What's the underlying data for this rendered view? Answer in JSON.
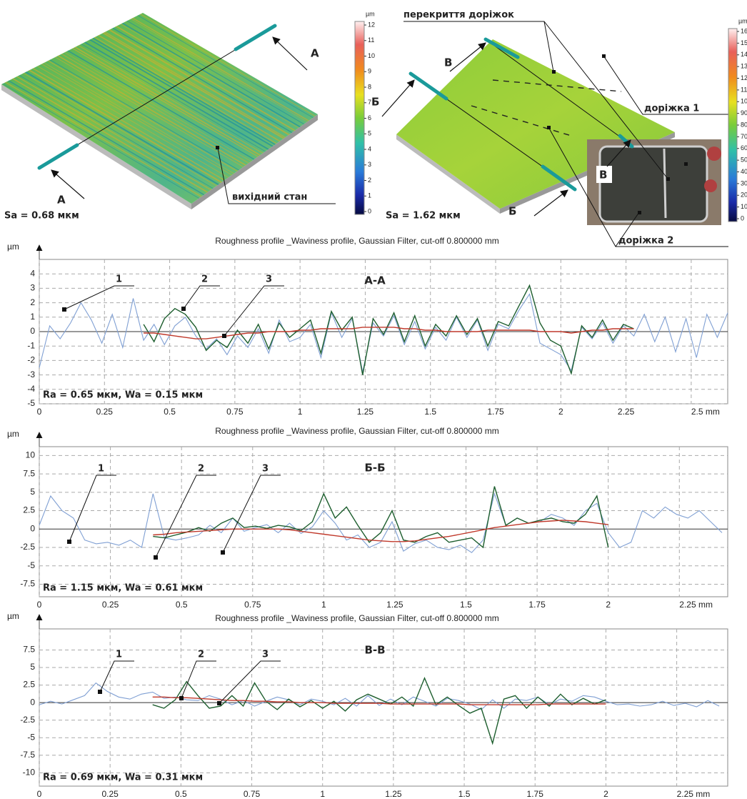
{
  "top": {
    "left_colorbar": {
      "unit": "µm",
      "ticks": [
        12,
        11,
        10,
        9,
        8,
        7,
        6,
        5,
        4,
        3,
        2,
        1,
        0
      ]
    },
    "right_colorbar": {
      "unit": "µm",
      "ticks": [
        16,
        15,
        14,
        13,
        12,
        11,
        10,
        90,
        80,
        70,
        60,
        50,
        40,
        30,
        20,
        10,
        0
      ]
    },
    "section_marks": [
      "А",
      "А",
      "Б",
      "В",
      "Б",
      "В"
    ],
    "labels": [
      "вихідний стан",
      "перекриття доріжок",
      "доріжка 1",
      "доріжка 2"
    ],
    "sa": [
      "Sa = 0.68 мкм",
      "Sa = 1.62 мкм"
    ]
  },
  "chart_data": [
    {
      "type": "line",
      "title": "Roughness profile _Waviness profile, Gaussian Filter, cut-off 0.800000 mm",
      "y_label": "µm",
      "section": "А-А",
      "stats": "Ra = 0.65 мкм, Wa = 0.15 мкм",
      "annotations": [
        "1",
        "2",
        "3"
      ],
      "xlim": [
        0,
        2.64
      ],
      "ylim": [
        -5,
        5
      ],
      "xticks": [
        0,
        0.25,
        0.5,
        0.75,
        1,
        1.25,
        1.5,
        1.75,
        2,
        2.25,
        {
          "value": 2.5,
          "label": "2.5 mm"
        }
      ],
      "yticks": [
        -5,
        -4,
        -3,
        -2,
        -1,
        0,
        1,
        2,
        3,
        4
      ],
      "grid": true,
      "x": [
        0,
        0.04,
        0.08,
        0.12,
        0.16,
        0.2,
        0.24,
        0.28,
        0.32,
        0.36,
        0.4,
        0.44,
        0.48,
        0.52,
        0.56,
        0.6,
        0.64,
        0.68,
        0.72,
        0.76,
        0.8,
        0.84,
        0.88,
        0.92,
        0.96,
        1,
        1.04,
        1.08,
        1.12,
        1.16,
        1.2,
        1.24,
        1.28,
        1.32,
        1.36,
        1.4,
        1.44,
        1.48,
        1.52,
        1.56,
        1.6,
        1.64,
        1.68,
        1.72,
        1.76,
        1.8,
        1.84,
        1.88,
        1.92,
        1.96,
        2,
        2.04,
        2.08,
        2.12,
        2.16,
        2.2,
        2.24,
        2.28,
        2.32,
        2.36,
        2.4,
        2.44,
        2.48,
        2.52,
        2.56,
        2.6,
        2.64
      ],
      "series": [
        {
          "color": "#7f9fd3",
          "values": [
            -2.5,
            0.4,
            -0.5,
            0.6,
            2.0,
            0.8,
            -0.8,
            1.2,
            -1.1,
            2.3,
            -0.6,
            0.5,
            -0.9,
            0.4,
            1.0,
            -0.3,
            -1.2,
            -0.5,
            -1.6,
            -0.3,
            -1.1,
            0.2,
            -1.5,
            0.8,
            -0.7,
            -0.4,
            0.5,
            -1.8,
            1.3,
            -0.4,
            0.9,
            -2.8,
            0.6,
            -0.3,
            1.1,
            -0.9,
            0.7,
            -1.2,
            0.3,
            -0.6,
            1.0,
            -0.4,
            0.8,
            -1.3,
            0.5,
            0.2,
            1.5,
            2.6,
            -0.8,
            -1.2,
            -1.6,
            -2.7,
            0.3,
            -0.5,
            0.6,
            -0.8,
            0.4,
            -0.3,
            1.2,
            -0.7,
            1.0,
            -1.4,
            0.9,
            -1.8,
            1.2,
            -0.4,
            1.3
          ]
        },
        {
          "color": "#1d5e2e",
          "values": [
            null,
            null,
            null,
            null,
            null,
            null,
            null,
            null,
            null,
            null,
            0.5,
            -0.7,
            0.9,
            1.6,
            1.2,
            0.3,
            -1.3,
            -0.6,
            -1.1,
            0.1,
            -0.8,
            0.5,
            -1.2,
            0.6,
            -0.4,
            0.2,
            0.8,
            -1.5,
            1.4,
            0.1,
            1.0,
            -3.0,
            0.9,
            -0.2,
            1.3,
            -0.7,
            1.1,
            -1.0,
            0.5,
            -0.3,
            1.1,
            -0.2,
            0.9,
            -1.0,
            0.7,
            0.4,
            1.8,
            3.2,
            0.6,
            -0.6,
            -1.0,
            -2.9,
            0.4,
            -0.4,
            0.8,
            -0.6,
            0.5,
            0.2,
            null,
            null,
            null,
            null,
            null,
            null,
            null,
            null,
            null
          ]
        },
        {
          "color": "#c0392b",
          "values": [
            null,
            null,
            null,
            null,
            null,
            null,
            null,
            null,
            null,
            null,
            -0.1,
            -0.1,
            -0.2,
            -0.3,
            -0.4,
            -0.5,
            -0.5,
            -0.4,
            -0.3,
            -0.2,
            -0.1,
            -0.1,
            0,
            0,
            0,
            0.1,
            0.1,
            0.2,
            0.2,
            0.2,
            0.2,
            0.3,
            0.3,
            0.3,
            0.3,
            0.2,
            0.2,
            0.1,
            0.1,
            0,
            0,
            0,
            0,
            0.1,
            0.1,
            0.1,
            0.1,
            0.1,
            0,
            0,
            0,
            -0.1,
            0,
            0.1,
            0.1,
            0.2,
            0.2,
            0.2,
            null,
            null,
            null,
            null,
            null,
            null,
            null,
            null,
            null
          ]
        }
      ]
    },
    {
      "type": "line",
      "title": "Roughness profile _Waviness profile, Gaussian Filter, cut-off 0.800000 mm",
      "y_label": "µm",
      "section": "Б-Б",
      "stats": "Ra = 1.15 мкм, Wa = 0.61 мкм",
      "annotations": [
        "1",
        "2",
        "3"
      ],
      "xlim": [
        0,
        2.42
      ],
      "ylim": [
        -9.2,
        11.2
      ],
      "xticks": [
        0,
        0.25,
        0.5,
        0.75,
        1,
        1.25,
        1.5,
        1.75,
        2,
        {
          "value": 2.25,
          "label": "2.25 mm"
        }
      ],
      "yticks": [
        -7.5,
        -5,
        -2.5,
        0,
        2.5,
        5,
        7.5,
        10
      ],
      "grid": true,
      "x": [
        0,
        0.04,
        0.08,
        0.12,
        0.16,
        0.2,
        0.24,
        0.28,
        0.32,
        0.36,
        0.4,
        0.44,
        0.48,
        0.52,
        0.56,
        0.6,
        0.64,
        0.68,
        0.72,
        0.76,
        0.8,
        0.84,
        0.88,
        0.92,
        0.96,
        1,
        1.04,
        1.08,
        1.12,
        1.16,
        1.2,
        1.24,
        1.28,
        1.32,
        1.36,
        1.4,
        1.44,
        1.48,
        1.52,
        1.56,
        1.6,
        1.64,
        1.68,
        1.72,
        1.76,
        1.8,
        1.84,
        1.88,
        1.92,
        1.96,
        2,
        2.04,
        2.08,
        2.12,
        2.16,
        2.2,
        2.24,
        2.28,
        2.32,
        2.36,
        2.4
      ],
      "series": [
        {
          "color": "#7f9fd3",
          "values": [
            0.5,
            4.5,
            2.5,
            1.5,
            -1.5,
            -2.0,
            -1.8,
            -2.2,
            -1.5,
            -2.5,
            4.8,
            -1.2,
            -1.5,
            -1.2,
            -0.8,
            0.5,
            -0.5,
            1.5,
            -0.3,
            0.2,
            0.6,
            -0.5,
            0.8,
            -0.6,
            0.3,
            2.5,
            0.8,
            -1.5,
            -0.8,
            -2.5,
            -1.8,
            1.0,
            -3.0,
            -2.0,
            -1.5,
            -2.5,
            -2.8,
            -2.2,
            -3.2,
            -1.5,
            4.8,
            0.5,
            1.5,
            0.8,
            1.0,
            2.0,
            1.5,
            0.5,
            2.5,
            3.5,
            -0.5,
            -2.5,
            -1.8,
            2.5,
            1.5,
            3.0,
            2.0,
            1.5,
            2.5,
            1.0,
            -0.5
          ]
        },
        {
          "color": "#1d5e2e",
          "values": [
            null,
            null,
            null,
            null,
            null,
            null,
            null,
            null,
            null,
            null,
            -1.0,
            -1.2,
            -0.8,
            -0.4,
            0.2,
            -0.3,
            0.8,
            1.5,
            0.2,
            0.4,
            0.1,
            0.5,
            0.3,
            -0.2,
            1.0,
            4.8,
            1.5,
            3.0,
            0.5,
            -1.8,
            -0.5,
            2.5,
            -1.5,
            -1.8,
            -1.0,
            -0.5,
            -1.8,
            -1.5,
            -1.2,
            -2.5,
            5.8,
            0.5,
            1.5,
            0.8,
            1.2,
            1.5,
            1.0,
            0.8,
            2.0,
            4.5,
            -2.5,
            null,
            null,
            null,
            null,
            null,
            null,
            null,
            null,
            null,
            null
          ]
        },
        {
          "color": "#c0392b",
          "values": [
            null,
            null,
            null,
            null,
            null,
            null,
            null,
            null,
            null,
            null,
            -0.8,
            -0.7,
            -0.5,
            -0.4,
            -0.3,
            -0.2,
            -0.1,
            0,
            0,
            0,
            0,
            0,
            -0.1,
            -0.3,
            -0.5,
            -0.7,
            -0.9,
            -1.1,
            -1.3,
            -1.5,
            -1.6,
            -1.7,
            -1.7,
            -1.6,
            -1.4,
            -1.2,
            -1.0,
            -0.7,
            -0.4,
            -0.1,
            0.2,
            0.4,
            0.6,
            0.8,
            1.0,
            1.1,
            1.2,
            1.1,
            1.0,
            0.8,
            0.6,
            null,
            null,
            null,
            null,
            null,
            null,
            null,
            null,
            null,
            null
          ]
        }
      ]
    },
    {
      "type": "line",
      "title": "Roughness profile _Waviness profile, Gaussian Filter, cut-off 0.800000 mm",
      "y_label": "µm",
      "section": "В-В",
      "stats": "Ra = 0.69 мкм, Wa = 0.31 мкм",
      "annotations": [
        "1",
        "2",
        "3"
      ],
      "xlim": [
        0,
        2.43
      ],
      "ylim": [
        -11.9,
        10.5
      ],
      "xticks": [
        0,
        0.25,
        0.5,
        0.75,
        1,
        1.25,
        1.5,
        1.75,
        2,
        {
          "value": 2.25,
          "label": "2.25 mm"
        }
      ],
      "yticks": [
        -10,
        -7.5,
        -5,
        -2.5,
        0,
        2.5,
        5,
        7.5
      ],
      "grid": true,
      "x": [
        0,
        0.04,
        0.08,
        0.12,
        0.16,
        0.2,
        0.24,
        0.28,
        0.32,
        0.36,
        0.4,
        0.44,
        0.48,
        0.52,
        0.56,
        0.6,
        0.64,
        0.68,
        0.72,
        0.76,
        0.8,
        0.84,
        0.88,
        0.92,
        0.96,
        1,
        1.04,
        1.08,
        1.12,
        1.16,
        1.2,
        1.24,
        1.28,
        1.32,
        1.36,
        1.4,
        1.44,
        1.48,
        1.52,
        1.56,
        1.6,
        1.64,
        1.68,
        1.72,
        1.76,
        1.8,
        1.84,
        1.88,
        1.92,
        1.96,
        2,
        2.04,
        2.08,
        2.12,
        2.16,
        2.2,
        2.24,
        2.28,
        2.32,
        2.36,
        2.4
      ],
      "series": [
        {
          "color": "#7f9fd3",
          "values": [
            -0.3,
            0.2,
            -0.2,
            0.4,
            1.0,
            2.8,
            1.6,
            0.8,
            0.5,
            1.2,
            1.5,
            0.6,
            0.8,
            0.4,
            0.3,
            1.0,
            0.5,
            -0.3,
            0.3,
            -0.5,
            0.2,
            0.8,
            0.4,
            -0.3,
            0.5,
            0.2,
            -0.3,
            0.6,
            -0.5,
            1.0,
            -0.4,
            0.5,
            -0.3,
            0.8,
            0.2,
            -0.5,
            0.6,
            0.3,
            -0.2,
            -1.0,
            0.4,
            -0.8,
            0.5,
            0.3,
            0.8,
            -0.3,
            0.5,
            0.2,
            1.0,
            0.8,
            0.2,
            -0.3,
            -0.2,
            -0.5,
            -0.3,
            0.2,
            -0.4,
            -0.1,
            -0.6,
            0.3,
            -0.5
          ]
        },
        {
          "color": "#1d5e2e",
          "values": [
            null,
            null,
            null,
            null,
            null,
            null,
            null,
            null,
            null,
            null,
            -0.3,
            -0.8,
            0.4,
            3.0,
            1.0,
            -0.8,
            -0.5,
            1.0,
            -0.5,
            2.8,
            0.2,
            -1.0,
            0.5,
            -0.6,
            0.3,
            -0.8,
            0.2,
            -1.2,
            0.4,
            1.2,
            0.5,
            -0.2,
            0.8,
            -0.5,
            3.5,
            -0.3,
            0.8,
            -0.4,
            -1.5,
            -0.8,
            -5.8,
            0.5,
            1.0,
            -0.8,
            0.8,
            -0.5,
            1.2,
            -0.3,
            0.6,
            -0.2,
            0.4,
            null,
            null,
            null,
            null,
            null,
            null,
            null,
            null,
            null,
            null
          ]
        },
        {
          "color": "#c0392b",
          "values": [
            null,
            null,
            null,
            null,
            null,
            null,
            null,
            null,
            null,
            null,
            0.8,
            0.8,
            0.7,
            0.7,
            0.6,
            0.5,
            0.4,
            0.3,
            0.3,
            0.2,
            0.2,
            0.1,
            0.1,
            0,
            0,
            0,
            -0.1,
            -0.1,
            -0.1,
            -0.1,
            -0.1,
            -0.2,
            -0.2,
            -0.2,
            -0.2,
            -0.2,
            -0.2,
            -0.2,
            -0.3,
            -0.3,
            -0.3,
            -0.3,
            -0.3,
            -0.3,
            -0.3,
            -0.2,
            -0.2,
            -0.2,
            -0.2,
            -0.2,
            -0.2,
            null,
            null,
            null,
            null,
            null,
            null,
            null,
            null,
            null,
            null
          ]
        }
      ]
    }
  ]
}
